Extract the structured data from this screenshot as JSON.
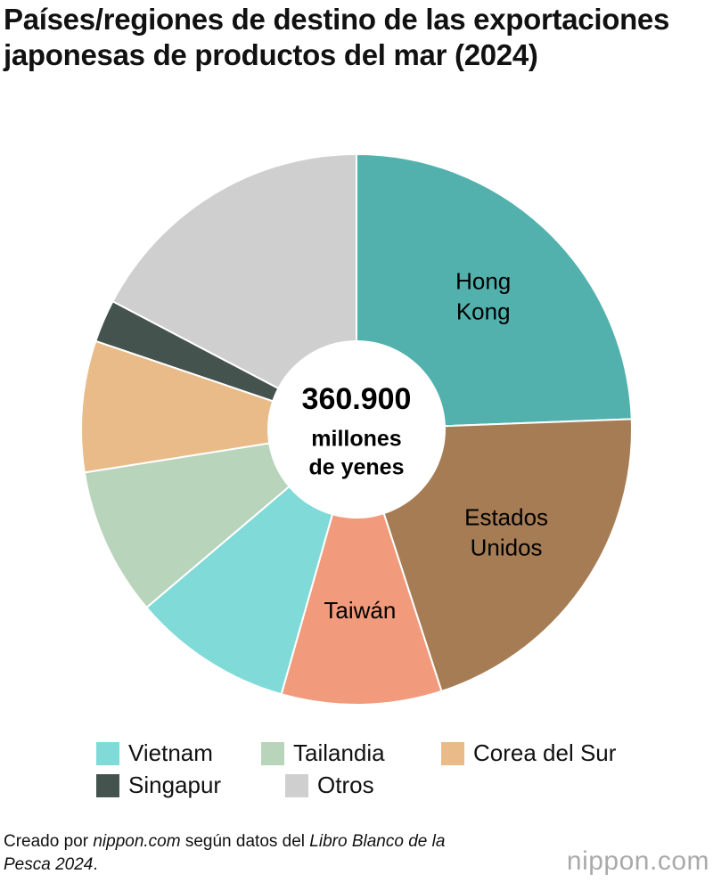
{
  "chart_data": {
    "type": "pie",
    "title": "Países/regiones de destino de las exportaciones japonesas de productos del mar (2024)",
    "categories": [
      "Hong Kong",
      "Estados Unidos",
      "Taiwán",
      "Vietnam",
      "Tailandia",
      "Corea del Sur",
      "Singapur",
      "Otros"
    ],
    "values": [
      24.4,
      20.6,
      9.4,
      9.4,
      8.7,
      7.7,
      2.5,
      17.3
    ],
    "colors": [
      "#52b1ad",
      "#a57c54",
      "#f29b7c",
      "#7fdad8",
      "#b8d4ba",
      "#e8bb88",
      "#45534f",
      "#cfcfcf"
    ],
    "center_total": "360.900",
    "center_unit": [
      "millones",
      "de yenes"
    ]
  },
  "source": [
    "Creado por ",
    "nippon.com",
    " según datos del ",
    "Libro Blanco de la Pesca 2024",
    "."
  ],
  "logo": "nippon.com"
}
